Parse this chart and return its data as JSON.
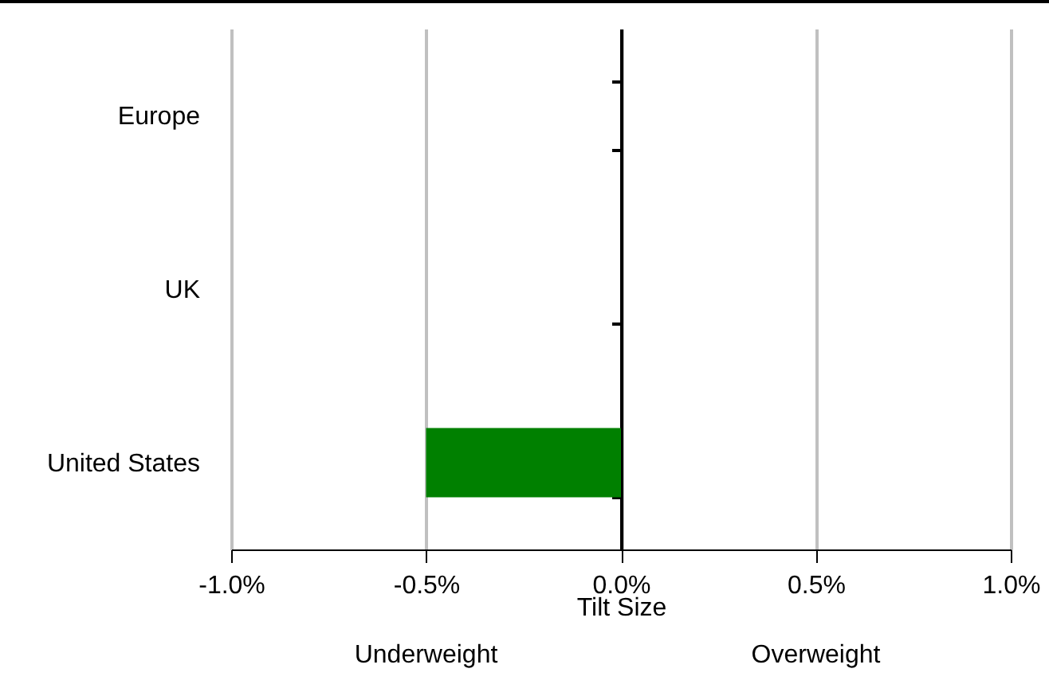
{
  "chart_data": {
    "type": "bar",
    "orientation": "horizontal",
    "xlabel": "Tilt Size",
    "categories": [
      "Europe",
      "UK",
      "United States"
    ],
    "values": [
      null,
      null,
      -0.5
    ],
    "color": "#008000",
    "xlim": [
      -1.0,
      1.0
    ],
    "xticks": [
      {
        "value": -1.0,
        "label": "-1.0%"
      },
      {
        "value": -0.5,
        "label": "-0.5%"
      },
      {
        "value": 0,
        "label": "0.0%"
      },
      {
        "value": 0.5,
        "label": "0.5%"
      },
      {
        "value": 1.0,
        "label": "1.0%"
      }
    ],
    "grid": "x",
    "annotations": [
      "Underweight",
      "Overweight"
    ]
  }
}
